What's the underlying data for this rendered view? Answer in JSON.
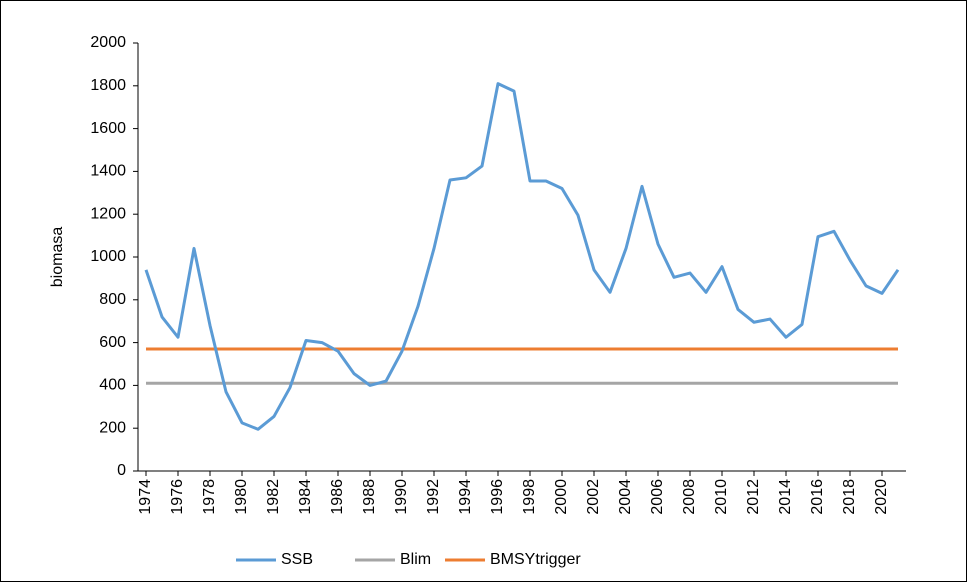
{
  "chart_data": {
    "type": "line",
    "y_label": "biomasa",
    "x": [
      1974,
      1975,
      1976,
      1977,
      1978,
      1979,
      1980,
      1981,
      1982,
      1983,
      1984,
      1985,
      1986,
      1987,
      1988,
      1989,
      1990,
      1991,
      1992,
      1993,
      1994,
      1995,
      1996,
      1997,
      1998,
      1999,
      2000,
      2001,
      2002,
      2003,
      2004,
      2005,
      2006,
      2007,
      2008,
      2009,
      2010,
      2011,
      2012,
      2013,
      2014,
      2015,
      2016,
      2017,
      2018,
      2019,
      2020,
      2021
    ],
    "xlim": [
      1973.5,
      2021.5
    ],
    "xticks": [
      1974,
      1976,
      1978,
      1980,
      1982,
      1984,
      1986,
      1988,
      1990,
      1992,
      1994,
      1996,
      1998,
      2000,
      2002,
      2004,
      2006,
      2008,
      2010,
      2012,
      2014,
      2016,
      2018,
      2020
    ],
    "ylim": [
      0,
      2000
    ],
    "yticks": [
      0,
      200,
      400,
      600,
      800,
      1000,
      1200,
      1400,
      1600,
      1800,
      2000
    ],
    "grid": false,
    "legend": "bottom",
    "series": [
      {
        "name": "SSB",
        "color": "#5b9bd5",
        "values": [
          940,
          720,
          625,
          1040,
          680,
          370,
          225,
          195,
          255,
          390,
          610,
          600,
          560,
          455,
          400,
          420,
          560,
          770,
          1040,
          1360,
          1370,
          1425,
          1810,
          1775,
          1355,
          1355,
          1320,
          1195,
          940,
          835,
          1040,
          1330,
          1060,
          905,
          925,
          835,
          955,
          755,
          695,
          710,
          625,
          685,
          1095,
          1120,
          985,
          865,
          830,
          940
        ]
      },
      {
        "name": "Blim",
        "color": "#a5a5a5",
        "values": [
          410,
          410,
          410,
          410,
          410,
          410,
          410,
          410,
          410,
          410,
          410,
          410,
          410,
          410,
          410,
          410,
          410,
          410,
          410,
          410,
          410,
          410,
          410,
          410,
          410,
          410,
          410,
          410,
          410,
          410,
          410,
          410,
          410,
          410,
          410,
          410,
          410,
          410,
          410,
          410,
          410,
          410,
          410,
          410,
          410,
          410,
          410,
          410
        ]
      },
      {
        "name": "BMSYtrigger",
        "color": "#ed7d31",
        "values": [
          570,
          570,
          570,
          570,
          570,
          570,
          570,
          570,
          570,
          570,
          570,
          570,
          570,
          570,
          570,
          570,
          570,
          570,
          570,
          570,
          570,
          570,
          570,
          570,
          570,
          570,
          570,
          570,
          570,
          570,
          570,
          570,
          570,
          570,
          570,
          570,
          570,
          570,
          570,
          570,
          570,
          570,
          570,
          570,
          570,
          570,
          570,
          570
        ]
      }
    ]
  }
}
